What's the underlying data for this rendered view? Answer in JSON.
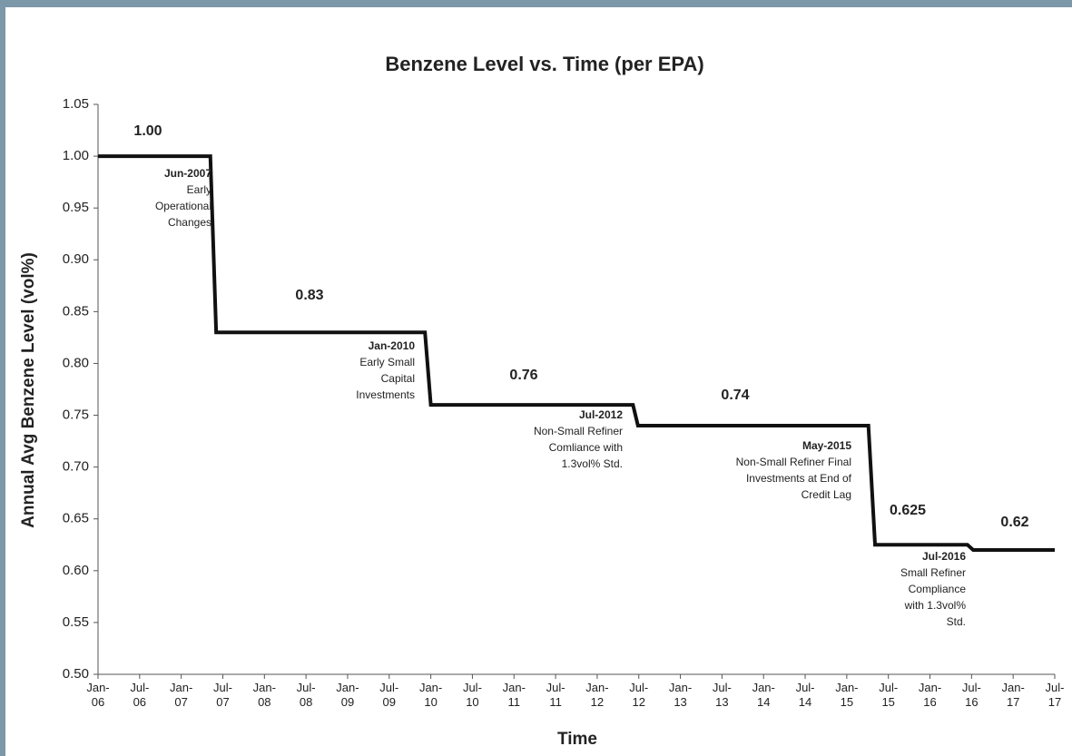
{
  "chart_data": {
    "type": "line",
    "title": "Benzene Level vs. Time (per EPA)",
    "y_label": "Annual Avg Benzene Level (vol%)",
    "x_label": "Time",
    "x": [
      2006,
      2007.35,
      2007.42,
      2009.93,
      2010.0,
      2012.43,
      2012.49,
      2015.26,
      2015.34,
      2016.45,
      2016.52,
      2017.5
    ],
    "series": [
      {
        "color": "#111111",
        "values": [
          1.0,
          1.0,
          0.83,
          0.83,
          0.76,
          0.76,
          0.74,
          0.74,
          0.625,
          0.625,
          0.62,
          0.62
        ]
      }
    ],
    "xlim": [
      2006,
      2017.5
    ],
    "xticks": [
      {
        "value": 2006,
        "label": "Jan-06"
      },
      {
        "value": 2006.5,
        "label": "Jul-06"
      },
      {
        "value": 2007,
        "label": "Jan-07"
      },
      {
        "value": 2007.5,
        "label": "Jul-07"
      },
      {
        "value": 2008,
        "label": "Jan-08"
      },
      {
        "value": 2008.5,
        "label": "Jul-08"
      },
      {
        "value": 2009,
        "label": "Jan-09"
      },
      {
        "value": 2009.5,
        "label": "Jul-09"
      },
      {
        "value": 2010,
        "label": "Jan-10"
      },
      {
        "value": 2010.5,
        "label": "Jul-10"
      },
      {
        "value": 2011,
        "label": "Jan-11"
      },
      {
        "value": 2011.5,
        "label": "Jul-11"
      },
      {
        "value": 2012,
        "label": "Jan-12"
      },
      {
        "value": 2012.5,
        "label": "Jul-12"
      },
      {
        "value": 2013,
        "label": "Jan-13"
      },
      {
        "value": 2013.5,
        "label": "Jul-13"
      },
      {
        "value": 2014,
        "label": "Jan-14"
      },
      {
        "value": 2014.5,
        "label": "Jul-14"
      },
      {
        "value": 2015,
        "label": "Jan-15"
      },
      {
        "value": 2015.5,
        "label": "Jul-15"
      },
      {
        "value": 2016,
        "label": "Jan-16"
      },
      {
        "value": 2016.5,
        "label": "Jul-16"
      },
      {
        "value": 2017,
        "label": "Jan-17"
      },
      {
        "value": 2017.5,
        "label": "Jul-17"
      }
    ],
    "ylim": [
      0.5,
      1.05
    ],
    "yticks": [
      {
        "value": 0.5,
        "label": "0.50"
      },
      0.55,
      {
        "value": 0.6,
        "label": "0.60"
      },
      0.65,
      {
        "value": 0.7,
        "label": "0.70"
      },
      0.75,
      {
        "value": 0.8,
        "label": "0.80"
      },
      0.85,
      {
        "value": 0.9,
        "label": "0.90"
      },
      0.95,
      {
        "value": 1,
        "label": "1.00"
      },
      1.05
    ],
    "grid": false,
    "level_labels": [
      "1.00",
      "0.83",
      "0.76",
      "0.74",
      "0.625",
      "0.62"
    ],
    "annotations": [
      {
        "title": "Jun-2007",
        "lines": [
          "Early",
          "Operational",
          "Changes"
        ]
      },
      {
        "title": "Jan-2010",
        "lines": [
          "Early Small",
          "Capital",
          "Investments"
        ]
      },
      {
        "title": "Jul-2012",
        "lines": [
          "Non-Small Refiner",
          "Comliance with",
          "1.3vol% Std."
        ]
      },
      {
        "title": "May-2015",
        "lines": [
          "Non-Small Refiner Final",
          "Investments at End of",
          "Credit Lag"
        ]
      },
      {
        "title": "Jul-2016",
        "lines": [
          "Small Refiner",
          "Compliance",
          "with 1.3vol%",
          "Std."
        ]
      }
    ]
  }
}
